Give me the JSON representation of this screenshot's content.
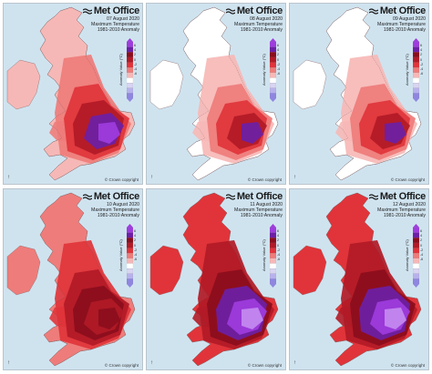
{
  "panels": [
    {
      "date": "07 August 2020",
      "scale": "violet"
    },
    {
      "date": "08 August 2020",
      "scale": "light"
    },
    {
      "date": "09 August 2020",
      "scale": "lighter"
    },
    {
      "date": "10 August 2020",
      "scale": "red"
    },
    {
      "date": "11 August 2020",
      "scale": "deep"
    },
    {
      "date": "12 August 2020",
      "scale": "deepest"
    }
  ],
  "brand": {
    "name": "Met Office",
    "title": "Maximum Temperature",
    "period": "1981-2010 Anomaly"
  },
  "legend": {
    "title": "Anomaly Value (°C)",
    "ticks": [
      "6",
      "4",
      "2",
      "0",
      "-2",
      "-4",
      "-6"
    ]
  },
  "copyright": "© Crown copyright",
  "colors": {
    "sea": "#cfe3ef",
    "white": "#ffffff",
    "pink": "#f6b8b6",
    "light_red": "#ee7c7a",
    "red": "#e0343a",
    "dark_red": "#b11a26",
    "deep_red": "#8b0d1c",
    "purple": "#6d1fa6",
    "violet": "#9e3cde",
    "lilac": "#c48bf0"
  }
}
